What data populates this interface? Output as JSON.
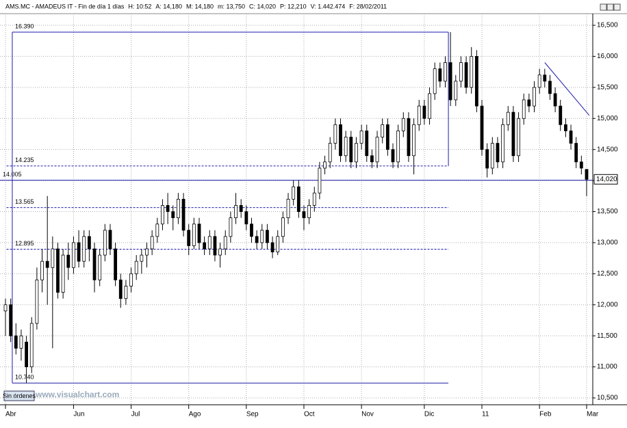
{
  "chart_data": {
    "type": "candlestick",
    "header": {
      "symbol": "AMS.MC - AMADEUS IT - Fin de día 1 días",
      "fields": [
        {
          "label": "H: 10:52",
          "color": "#000000"
        },
        {
          "label": "A: 14,180",
          "color": "#000000"
        },
        {
          "label": "M: 14,180",
          "color": "#000000"
        },
        {
          "label": "m: 13,750",
          "color": "#000000"
        },
        {
          "label": "C: 14,020",
          "color": "#000000"
        },
        {
          "label": "P: 12,210",
          "color": "#dd0000"
        },
        {
          "label": "V: 1.442.474",
          "color": "#000000"
        },
        {
          "label": "F: 28/02/2011",
          "color": "#000000"
        }
      ]
    },
    "button": "Sin órdenes",
    "watermark": "www.visualchart.com",
    "ylim": [
      10.5,
      16.5
    ],
    "yticks": [
      {
        "value": 10.5,
        "label": "10,500"
      },
      {
        "value": 11,
        "label": "11,000"
      },
      {
        "value": 11.5,
        "label": "11,500"
      },
      {
        "value": 12,
        "label": "12,000"
      },
      {
        "value": 12.5,
        "label": "12,500"
      },
      {
        "value": 13,
        "label": "13,000"
      },
      {
        "value": 13.5,
        "label": "13,500"
      },
      {
        "value": 14,
        "label": "14,000"
      },
      {
        "value": 14.5,
        "label": "14,500"
      },
      {
        "value": 15,
        "label": "15,000"
      },
      {
        "value": 15.5,
        "label": "15,500"
      },
      {
        "value": 16,
        "label": "16,000"
      },
      {
        "value": 16.5,
        "label": "16,500"
      }
    ],
    "xlim": [
      0,
      111
    ],
    "xticks": [
      {
        "value": 0,
        "label": "Abr"
      },
      {
        "value": 13,
        "label": "Jun"
      },
      {
        "value": 24,
        "label": "Jul"
      },
      {
        "value": 35,
        "label": "Ago"
      },
      {
        "value": 46,
        "label": "Sep"
      },
      {
        "value": 57,
        "label": "Oct"
      },
      {
        "value": 68,
        "label": "Nov"
      },
      {
        "value": 80,
        "label": "Dic"
      },
      {
        "value": 91,
        "label": "11"
      },
      {
        "value": 102,
        "label": "Feb"
      },
      {
        "value": 111,
        "label": "Mar"
      }
    ],
    "grid": true,
    "up_color": "#ffffff",
    "down_color": "#000000",
    "annotation_color": "#1a1aa8",
    "last_price": {
      "value": 14.02,
      "label": "14,020"
    },
    "levels": [
      {
        "value": 16.39,
        "label": "16.390",
        "style": "solid"
      },
      {
        "value": 14.235,
        "label": "14.235",
        "style": "dashed"
      },
      {
        "value": 14.005,
        "label": "14.005",
        "style": "full"
      },
      {
        "value": 13.565,
        "label": "13.565",
        "style": "dashed"
      },
      {
        "value": 12.895,
        "label": "12.895",
        "style": "dashed"
      },
      {
        "value": 10.74,
        "label": "10.740",
        "style": "solid"
      }
    ],
    "trendline": {
      "x": [
        103,
        111.5
      ],
      "y": [
        15.9,
        15.05
      ]
    },
    "candles": [
      [
        11.9,
        12.1,
        11.5,
        12.0
      ],
      [
        12.0,
        12.1,
        11.4,
        11.5
      ],
      [
        11.5,
        11.7,
        11.2,
        11.3
      ],
      [
        11.3,
        11.6,
        11.1,
        11.5
      ],
      [
        11.4,
        11.5,
        10.74,
        11.0
      ],
      [
        11.0,
        11.8,
        10.9,
        11.7
      ],
      [
        11.7,
        12.6,
        11.6,
        12.4
      ],
      [
        12.4,
        12.9,
        12.2,
        12.7
      ],
      [
        12.7,
        13.75,
        12.0,
        12.6
      ],
      [
        12.6,
        13.1,
        11.3,
        12.9
      ],
      [
        12.9,
        13.0,
        12.1,
        12.2
      ],
      [
        12.2,
        12.9,
        12.1,
        12.8
      ],
      [
        12.8,
        13.0,
        12.4,
        12.6
      ],
      [
        12.6,
        13.1,
        12.5,
        13.0
      ],
      [
        13.0,
        13.2,
        12.6,
        12.7
      ],
      [
        12.7,
        13.2,
        12.6,
        13.1
      ],
      [
        13.1,
        13.2,
        12.7,
        12.9
      ],
      [
        12.9,
        13.0,
        12.2,
        12.4
      ],
      [
        12.4,
        12.9,
        12.3,
        12.8
      ],
      [
        12.8,
        13.3,
        12.7,
        13.2
      ],
      [
        13.2,
        13.3,
        12.8,
        12.9
      ],
      [
        12.9,
        13.0,
        12.3,
        12.4
      ],
      [
        12.4,
        12.5,
        11.95,
        12.1
      ],
      [
        12.1,
        12.4,
        12.0,
        12.3
      ],
      [
        12.3,
        12.6,
        12.2,
        12.5
      ],
      [
        12.5,
        12.8,
        12.4,
        12.7
      ],
      [
        12.7,
        12.9,
        12.5,
        12.8
      ],
      [
        12.8,
        13.0,
        12.6,
        12.9
      ],
      [
        12.9,
        13.2,
        12.8,
        13.1
      ],
      [
        13.1,
        13.4,
        13.0,
        13.3
      ],
      [
        13.3,
        13.7,
        13.2,
        13.6
      ],
      [
        13.6,
        13.8,
        13.3,
        13.5
      ],
      [
        13.5,
        13.6,
        13.2,
        13.4
      ],
      [
        13.4,
        13.8,
        13.3,
        13.7
      ],
      [
        13.7,
        13.8,
        13.1,
        13.2
      ],
      [
        13.2,
        13.3,
        12.8,
        12.95
      ],
      [
        12.95,
        13.4,
        12.9,
        13.3
      ],
      [
        13.3,
        13.4,
        12.9,
        13.0
      ],
      [
        13.0,
        13.1,
        12.8,
        12.9
      ],
      [
        12.9,
        13.2,
        12.8,
        13.1
      ],
      [
        13.1,
        13.2,
        12.7,
        12.8
      ],
      [
        12.8,
        13.0,
        12.6,
        12.9
      ],
      [
        12.9,
        13.2,
        12.8,
        13.1
      ],
      [
        13.1,
        13.5,
        13.0,
        13.4
      ],
      [
        13.4,
        13.8,
        13.3,
        13.6
      ],
      [
        13.6,
        13.7,
        13.4,
        13.5
      ],
      [
        13.5,
        13.6,
        13.2,
        13.3
      ],
      [
        13.3,
        13.4,
        13.0,
        13.1
      ],
      [
        13.1,
        13.2,
        12.9,
        13.0
      ],
      [
        13.0,
        13.3,
        12.9,
        13.2
      ],
      [
        13.2,
        13.3,
        12.9,
        13.0
      ],
      [
        13.0,
        13.1,
        12.75,
        12.85
      ],
      [
        12.85,
        13.2,
        12.8,
        13.1
      ],
      [
        13.1,
        13.5,
        13.0,
        13.4
      ],
      [
        13.4,
        13.8,
        13.3,
        13.7
      ],
      [
        13.7,
        14.0,
        13.6,
        13.9
      ],
      [
        13.9,
        14.0,
        13.4,
        13.5
      ],
      [
        13.5,
        13.6,
        13.2,
        13.4
      ],
      [
        13.4,
        13.7,
        13.3,
        13.6
      ],
      [
        13.6,
        13.9,
        13.5,
        13.8
      ],
      [
        13.8,
        14.3,
        13.7,
        14.2
      ],
      [
        14.2,
        14.4,
        14.1,
        14.3
      ],
      [
        14.3,
        14.7,
        14.2,
        14.6
      ],
      [
        14.6,
        15.0,
        14.5,
        14.9
      ],
      [
        14.9,
        15.0,
        14.3,
        14.4
      ],
      [
        14.4,
        14.8,
        14.3,
        14.7
      ],
      [
        14.7,
        14.8,
        14.2,
        14.3
      ],
      [
        14.3,
        14.7,
        14.2,
        14.6
      ],
      [
        14.6,
        14.9,
        14.5,
        14.8
      ],
      [
        14.8,
        14.9,
        14.3,
        14.4
      ],
      [
        14.4,
        14.5,
        14.2,
        14.3
      ],
      [
        14.3,
        14.8,
        14.2,
        14.7
      ],
      [
        14.7,
        15.0,
        14.6,
        14.9
      ],
      [
        14.9,
        15.0,
        14.4,
        14.5
      ],
      [
        14.5,
        14.6,
        14.2,
        14.3
      ],
      [
        14.3,
        14.9,
        14.2,
        14.8
      ],
      [
        14.8,
        15.1,
        14.7,
        15.0
      ],
      [
        15.0,
        15.1,
        14.3,
        14.4
      ],
      [
        14.4,
        15.0,
        14.1,
        14.9
      ],
      [
        14.9,
        15.3,
        14.8,
        15.2
      ],
      [
        15.2,
        15.3,
        14.9,
        15.0
      ],
      [
        15.0,
        15.5,
        14.9,
        15.4
      ],
      [
        15.4,
        15.9,
        15.3,
        15.8
      ],
      [
        15.8,
        15.9,
        15.5,
        15.6
      ],
      [
        15.6,
        16.0,
        15.5,
        15.9
      ],
      [
        15.9,
        16.39,
        15.2,
        15.3
      ],
      [
        15.3,
        15.7,
        15.2,
        15.6
      ],
      [
        15.6,
        16.0,
        15.5,
        15.9
      ],
      [
        15.9,
        16.0,
        15.4,
        15.5
      ],
      [
        15.5,
        16.15,
        15.4,
        16.0
      ],
      [
        16.0,
        16.1,
        15.1,
        15.2
      ],
      [
        15.2,
        15.3,
        14.4,
        14.5
      ],
      [
        14.5,
        14.6,
        14.05,
        14.2
      ],
      [
        14.2,
        14.7,
        14.1,
        14.6
      ],
      [
        14.6,
        14.7,
        14.2,
        14.3
      ],
      [
        14.3,
        15.0,
        14.2,
        14.9
      ],
      [
        14.9,
        15.2,
        14.8,
        15.1
      ],
      [
        15.1,
        15.2,
        14.3,
        14.4
      ],
      [
        14.4,
        15.1,
        14.3,
        15.0
      ],
      [
        15.0,
        15.4,
        14.9,
        15.3
      ],
      [
        15.3,
        15.4,
        15.1,
        15.2
      ],
      [
        15.2,
        15.6,
        15.1,
        15.5
      ],
      [
        15.5,
        15.8,
        15.4,
        15.7
      ],
      [
        15.7,
        15.8,
        15.5,
        15.6
      ],
      [
        15.6,
        15.7,
        15.3,
        15.4
      ],
      [
        15.4,
        15.5,
        15.1,
        15.2
      ],
      [
        15.2,
        15.3,
        14.8,
        14.9
      ],
      [
        14.9,
        15.0,
        14.7,
        14.8
      ],
      [
        14.8,
        14.9,
        14.5,
        14.6
      ],
      [
        14.6,
        14.7,
        14.2,
        14.3
      ],
      [
        14.3,
        14.4,
        14.1,
        14.2
      ],
      [
        14.18,
        14.18,
        13.75,
        14.02
      ]
    ]
  }
}
